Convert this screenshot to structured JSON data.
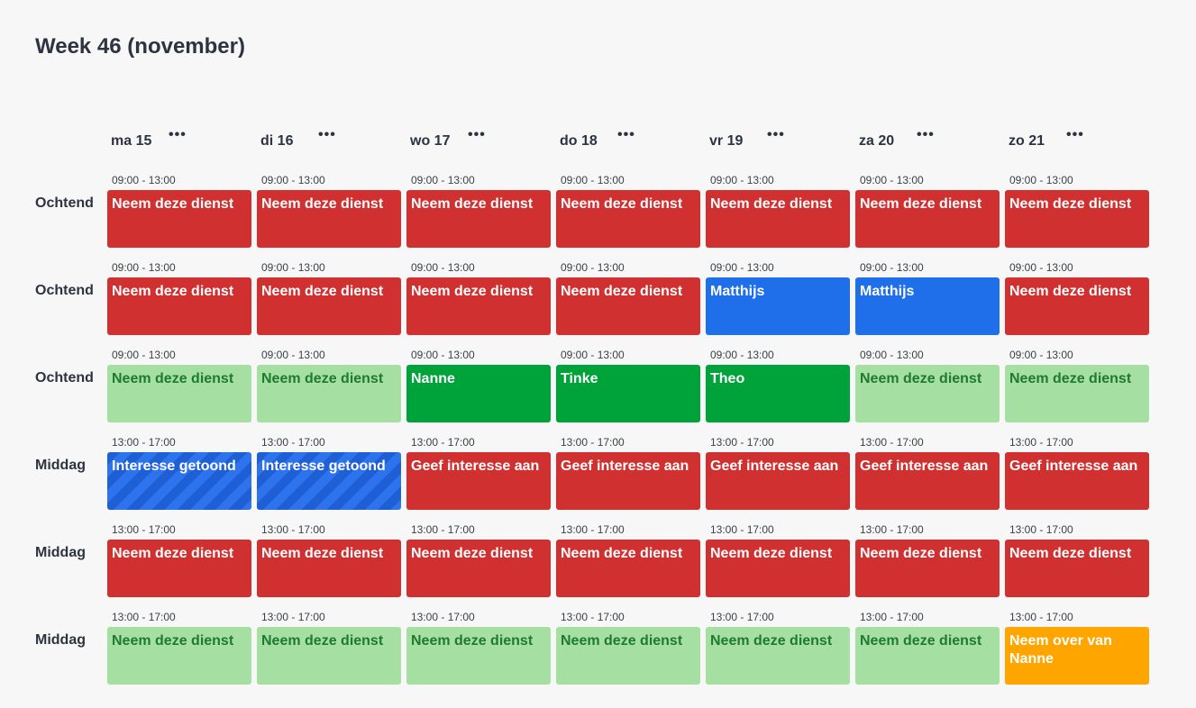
{
  "title": "Week 46 (november)",
  "colors": {
    "open": "#d13030",
    "assigned_blue": "#1f6feb",
    "assigned_green": "#00a33a",
    "optional": "#a5dfa2",
    "takeover": "#ffa500",
    "interest": "#1f5fd6"
  },
  "menu_icon": "more-dots-icon",
  "menu_glyph": "•••",
  "days": [
    "ma 15",
    "di 16",
    "wo 17",
    "do 18",
    "vr 19",
    "za 20",
    "zo 21"
  ],
  "rows": [
    {
      "label": "Ochtend",
      "time": "09:00 - 13:00",
      "cells": [
        {
          "text": "Neem deze dienst",
          "style": "red"
        },
        {
          "text": "Neem deze dienst",
          "style": "red"
        },
        {
          "text": "Neem deze dienst",
          "style": "red"
        },
        {
          "text": "Neem deze dienst",
          "style": "red"
        },
        {
          "text": "Neem deze dienst",
          "style": "red"
        },
        {
          "text": "Neem deze dienst",
          "style": "red"
        },
        {
          "text": "Neem deze dienst",
          "style": "red"
        }
      ]
    },
    {
      "label": "Ochtend",
      "time": "09:00 - 13:00",
      "cells": [
        {
          "text": "Neem deze dienst",
          "style": "red"
        },
        {
          "text": "Neem deze dienst",
          "style": "red"
        },
        {
          "text": "Neem deze dienst",
          "style": "red"
        },
        {
          "text": "Neem deze dienst",
          "style": "red"
        },
        {
          "text": "Matthijs",
          "style": "blue"
        },
        {
          "text": "Matthijs",
          "style": "blue"
        },
        {
          "text": "Neem deze dienst",
          "style": "red"
        }
      ]
    },
    {
      "label": "Ochtend",
      "time": "09:00 - 13:00",
      "cells": [
        {
          "text": "Neem deze dienst",
          "style": "lightgreen"
        },
        {
          "text": "Neem deze dienst",
          "style": "lightgreen"
        },
        {
          "text": "Nanne",
          "style": "green"
        },
        {
          "text": "Tinke",
          "style": "green"
        },
        {
          "text": "Theo",
          "style": "green"
        },
        {
          "text": "Neem deze dienst",
          "style": "lightgreen"
        },
        {
          "text": "Neem deze dienst",
          "style": "lightgreen"
        }
      ]
    },
    {
      "label": "Middag",
      "time": "13:00 - 17:00",
      "cells": [
        {
          "text": "Interesse getoond",
          "style": "striped"
        },
        {
          "text": "Interesse getoond",
          "style": "striped"
        },
        {
          "text": "Geef interesse aan",
          "style": "red"
        },
        {
          "text": "Geef interesse aan",
          "style": "red"
        },
        {
          "text": "Geef interesse aan",
          "style": "red"
        },
        {
          "text": "Geef interesse aan",
          "style": "red"
        },
        {
          "text": "Geef interesse aan",
          "style": "red"
        }
      ]
    },
    {
      "label": "Middag",
      "time": "13:00 - 17:00",
      "cells": [
        {
          "text": "Neem deze dienst",
          "style": "red"
        },
        {
          "text": "Neem deze dienst",
          "style": "red"
        },
        {
          "text": "Neem deze dienst",
          "style": "red"
        },
        {
          "text": "Neem deze dienst",
          "style": "red"
        },
        {
          "text": "Neem deze dienst",
          "style": "red"
        },
        {
          "text": "Neem deze dienst",
          "style": "red"
        },
        {
          "text": "Neem deze dienst",
          "style": "red"
        }
      ]
    },
    {
      "label": "Middag",
      "time": "13:00 - 17:00",
      "cells": [
        {
          "text": "Neem deze dienst",
          "style": "lightgreen"
        },
        {
          "text": "Neem deze dienst",
          "style": "lightgreen"
        },
        {
          "text": "Neem deze dienst",
          "style": "lightgreen"
        },
        {
          "text": "Neem deze dienst",
          "style": "lightgreen"
        },
        {
          "text": "Neem deze dienst",
          "style": "lightgreen"
        },
        {
          "text": "Neem deze dienst",
          "style": "lightgreen"
        },
        {
          "text": "Neem over van Nanne",
          "style": "orange"
        }
      ]
    }
  ]
}
